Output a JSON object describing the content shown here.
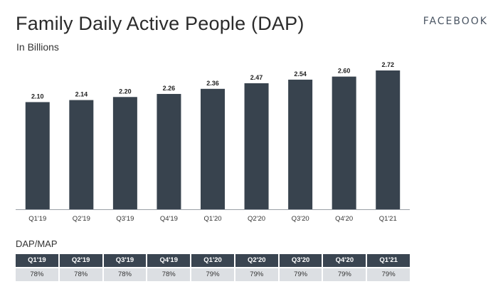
{
  "header": {
    "title": "Family Daily Active People (DAP)",
    "subtitle": "In Billions",
    "brand": "FACEBOOK"
  },
  "chart_data": {
    "type": "bar",
    "title": "Family Daily Active People (DAP)",
    "ylabel": "In Billions",
    "categories": [
      "Q1'19",
      "Q2'19",
      "Q3'19",
      "Q4'19",
      "Q1'20",
      "Q2'20",
      "Q3'20",
      "Q4'20",
      "Q1'21"
    ],
    "values": [
      2.1,
      2.14,
      2.2,
      2.26,
      2.36,
      2.47,
      2.54,
      2.6,
      2.72
    ],
    "value_labels": [
      "2.10",
      "2.14",
      "2.20",
      "2.26",
      "2.36",
      "2.47",
      "2.54",
      "2.60",
      "2.72"
    ],
    "bar_color": "#38434e",
    "ylim": [
      0,
      2.72
    ],
    "grid": false
  },
  "table": {
    "title": "DAP/MAP",
    "headers": [
      "Q1'19",
      "Q2'19",
      "Q3'19",
      "Q4'19",
      "Q1'20",
      "Q2'20",
      "Q3'20",
      "Q4'20",
      "Q1'21"
    ],
    "values": [
      "78%",
      "78%",
      "78%",
      "78%",
      "79%",
      "79%",
      "79%",
      "79%",
      "79%"
    ],
    "header_color": "#3a4551",
    "cell_color": "#dcdfe3"
  }
}
